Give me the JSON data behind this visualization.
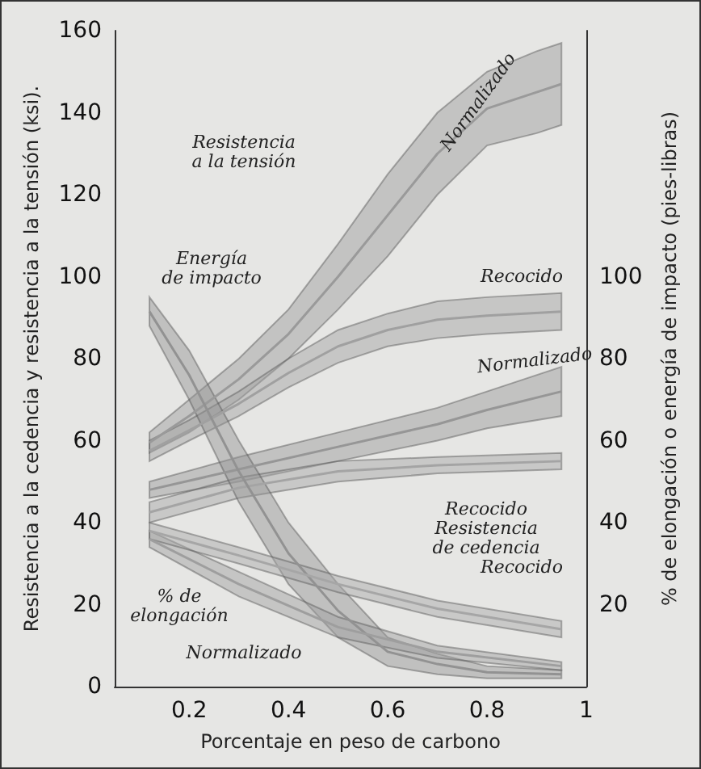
{
  "chart_data": {
    "type": "line",
    "xlabel": "Porcentaje en peso de carbono",
    "ylabel": "Resistencia a la cedencia y resistencia a la tensión (ksi).",
    "y2label": "% de elongación o energía de impacto (pies-libras)",
    "xlim": [
      0.05,
      1.0
    ],
    "xticks": [
      0.2,
      0.4,
      0.6,
      0.8,
      1
    ],
    "ylim": [
      0,
      160
    ],
    "yticks": [
      0,
      20,
      40,
      60,
      80,
      100,
      120,
      140,
      160
    ],
    "y2lim": [
      0,
      160
    ],
    "y2ticks": [
      20,
      40,
      60,
      80,
      100
    ],
    "grid": false,
    "marker": "none",
    "series": [
      {
        "color": "#9a9a9a",
        "x": [
          0.12,
          0.2,
          0.3,
          0.4,
          0.5,
          0.6,
          0.7,
          0.8,
          0.9,
          0.95
        ],
        "values": [
          59.5,
          66,
          75,
          86,
          100,
          115,
          130,
          141,
          145,
          147
        ],
        "lower": [
          57,
          62,
          70,
          80,
          92,
          105,
          120,
          132,
          135,
          137
        ],
        "upper": [
          62,
          70,
          80,
          92,
          108,
          125,
          140,
          150,
          155,
          157
        ]
      },
      {
        "color": "#a0a0a0",
        "x": [
          0.12,
          0.2,
          0.3,
          0.4,
          0.5,
          0.6,
          0.7,
          0.8,
          0.95
        ],
        "values": [
          57.5,
          62.5,
          69,
          76.5,
          83,
          87,
          89.5,
          90.5,
          91.5
        ],
        "lower": [
          55,
          60,
          66,
          73,
          79,
          83,
          85,
          86,
          87
        ],
        "upper": [
          60,
          65,
          72,
          80,
          87,
          91,
          94,
          95,
          96
        ]
      },
      {
        "color": "#969696",
        "x": [
          0.12,
          0.3,
          0.5,
          0.7,
          0.8,
          0.95
        ],
        "values": [
          48,
          53,
          58.5,
          64,
          67.5,
          72
        ],
        "lower": [
          46,
          50,
          55,
          60,
          63,
          66
        ],
        "upper": [
          50,
          56,
          62,
          68,
          72,
          78
        ]
      },
      {
        "color": "#a4a4a4",
        "x": [
          0.12,
          0.3,
          0.5,
          0.7,
          0.95
        ],
        "values": [
          42.5,
          48.5,
          52.5,
          54,
          55
        ],
        "lower": [
          40,
          46,
          50,
          52,
          53
        ],
        "upper": [
          45,
          51,
          55,
          56,
          57
        ]
      },
      {
        "color": "#929292",
        "x": [
          0.12,
          0.2,
          0.3,
          0.4,
          0.5,
          0.6,
          0.7,
          0.8,
          0.95
        ],
        "values": [
          91.5,
          76,
          52.5,
          32.5,
          18.5,
          8.5,
          5.5,
          3.5,
          3
        ],
        "lower": [
          88,
          70,
          45,
          25,
          12,
          5,
          3,
          2,
          2
        ],
        "upper": [
          95,
          82,
          60,
          40,
          25,
          12,
          8,
          5,
          4
        ]
      },
      {
        "color": "#9e9e9e",
        "x": [
          0.12,
          0.3,
          0.5,
          0.7,
          0.95
        ],
        "values": [
          36,
          25,
          14.5,
          8.5,
          5
        ],
        "lower": [
          34,
          22,
          12,
          7,
          4
        ],
        "upper": [
          38,
          28,
          17,
          10,
          6
        ]
      },
      {
        "color": "#a6a6a6",
        "x": [
          0.12,
          0.3,
          0.5,
          0.7,
          0.95
        ],
        "values": [
          38,
          32,
          25,
          19,
          14
        ],
        "lower": [
          36,
          30,
          23,
          17,
          12
        ],
        "upper": [
          40,
          34,
          27,
          21,
          16
        ]
      }
    ],
    "annotations": [
      "Resistencia\na la tensión",
      "Normalizado",
      "Energía\nde impacto",
      "Recocido",
      "Normalizado",
      "Recocido\nResistencia\nde cedencia",
      "% de\nelongación",
      "Normalizado",
      "Recocido"
    ]
  }
}
